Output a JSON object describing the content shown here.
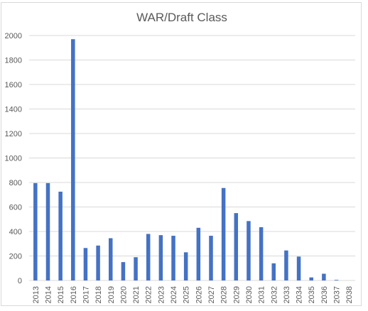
{
  "chart_data": {
    "type": "bar",
    "title": "WAR/Draft Class",
    "xlabel": "",
    "ylabel": "",
    "ylim": [
      0,
      2000
    ],
    "yticks": [
      0,
      200,
      400,
      600,
      800,
      1000,
      1200,
      1400,
      1600,
      1800,
      2000
    ],
    "grid": true,
    "legend": "none",
    "categories": [
      "2013",
      "2014",
      "2015",
      "2016",
      "2017",
      "2018",
      "2019",
      "2020",
      "2021",
      "2022",
      "2023",
      "2024",
      "2025",
      "2026",
      "2027",
      "2028",
      "2029",
      "2030",
      "2031",
      "2032",
      "2033",
      "2034",
      "2035",
      "2036",
      "2037",
      "2038"
    ],
    "values": [
      795,
      795,
      725,
      1970,
      265,
      285,
      345,
      150,
      190,
      380,
      370,
      365,
      230,
      430,
      365,
      755,
      550,
      485,
      435,
      140,
      245,
      195,
      25,
      55,
      5,
      0
    ],
    "bar_color": "#4472c4",
    "grid_color": "#d9d9d9",
    "text_color": "#595959"
  }
}
